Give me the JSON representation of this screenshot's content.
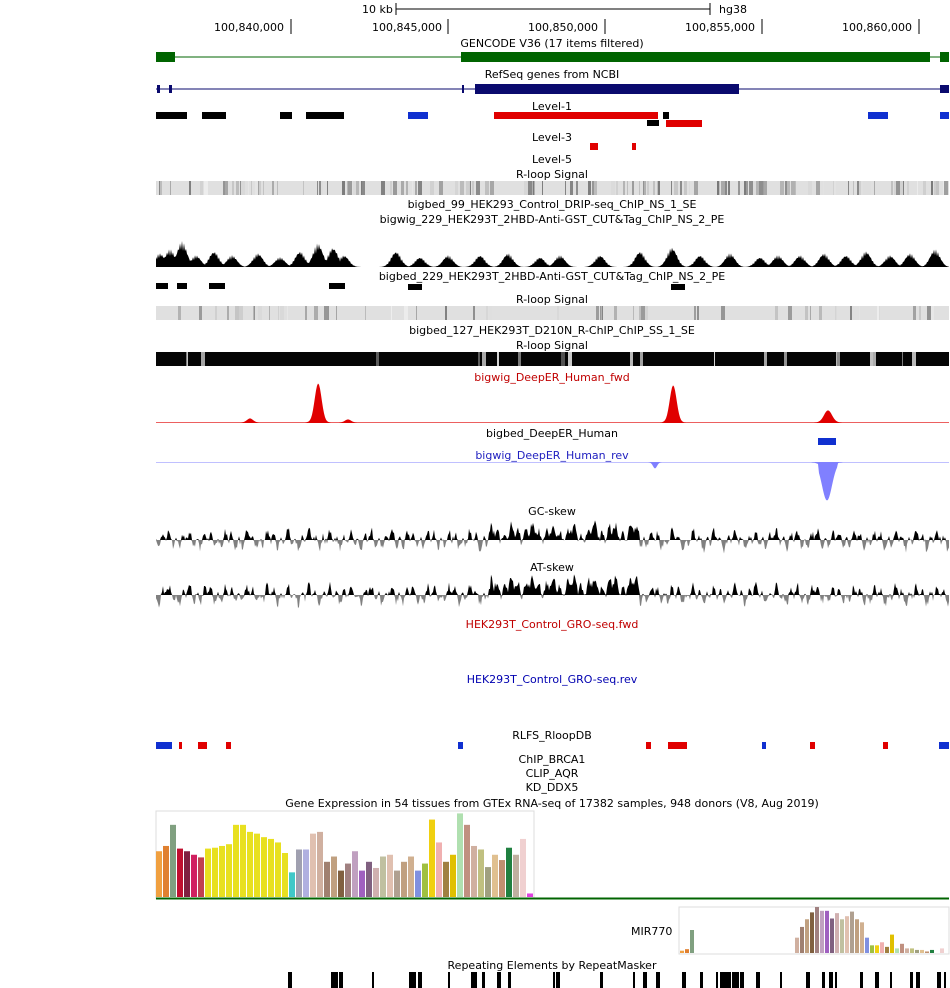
{
  "ruler": {
    "scale_label": "10 kb",
    "assembly": "hg38",
    "positions": [
      "100,840,000",
      "100,845,000",
      "100,850,000",
      "100,855,000",
      "100,860,000"
    ]
  },
  "tracks": {
    "gencode": "GENCODE V36 (17 items filtered)",
    "refseq": "RefSeq genes from NCBI",
    "level1": "Level-1",
    "level3": "Level-3",
    "level5": "Level-5",
    "rloop1": "R-loop Signal",
    "drip": "bigbed_99_HEK293_Control_DRIP-seq_ChIP_NS_1_SE",
    "cuttag_wig": "bigwig_229_HEK293T_2HBD-Anti-GST_CUT&Tag_ChIP_NS_2_PE",
    "cuttag_bed": "bigbed_229_HEK293T_2HBD-Anti-GST_CUT&Tag_ChIP_NS_2_PE",
    "rloop2": "R-loop Signal",
    "d210n": "bigbed_127_HEK293T_D210N_R-ChIP_ChIP_SS_1_SE",
    "rloop3": "R-loop Signal",
    "deeper_fwd": "bigwig_DeepER_Human_fwd",
    "deeper_bed": "bigbed_DeepER_Human",
    "deeper_rev": "bigwig_DeepER_Human_rev",
    "gcskew": "GC-skew",
    "atskew": "AT-skew",
    "gro_fwd": "HEK293T_Control_GRO-seq.fwd",
    "gro_rev": "HEK293T_Control_GRO-seq.rev",
    "rlfs": "RLFS_RloopDB",
    "brca1": "ChIP_BRCA1",
    "aqr": "CLIP_AQR",
    "ddx5": "KD_DDX5",
    "gtex": "Gene Expression in 54 tissues from GTEx RNA-seq of 17382 samples, 948 donors (V8, Aug 2019)",
    "mir": "MIR770",
    "repeats": "Repeating Elements by RepeatMasker"
  },
  "colors": {
    "gencode": "#006400",
    "refseq": "#0a0a6e",
    "level_red": "#e00000",
    "strand_blue": "#1030d0",
    "deeper_fwd": "#e00000",
    "deeper_rev": "#8080ff",
    "gro_fwd_label": "#c00000",
    "gro_rev_label": "#0000b0"
  },
  "gtex_chart": {
    "values": [
      52,
      58,
      82,
      55,
      52,
      48,
      45,
      55,
      56,
      58,
      60,
      82,
      82,
      74,
      72,
      68,
      66,
      62,
      50,
      28,
      54,
      54,
      72,
      74,
      40,
      46,
      30,
      38,
      52,
      30,
      40,
      33,
      46,
      48,
      30,
      40,
      46,
      30,
      38,
      88,
      62,
      40,
      48,
      95,
      82,
      58,
      54,
      34,
      48,
      42,
      56,
      48,
      66,
      4
    ],
    "colors": [
      "#f0a040",
      "#e08030",
      "#80a080",
      "#c01030",
      "#802040",
      "#d02060",
      "#c04050",
      "#e8e020",
      "#e8e020",
      "#e8e020",
      "#e8e020",
      "#e8e020",
      "#e8e020",
      "#e8e020",
      "#e8e020",
      "#e8e020",
      "#e8e020",
      "#e8e020",
      "#e8e020",
      "#40c8c8",
      "#a0a0b0",
      "#b0b0e0",
      "#e0c0b0",
      "#d0b0a0",
      "#a08070",
      "#c0a080",
      "#806040",
      "#a08080",
      "#c0a0c0",
      "#a060c0",
      "#806080",
      "#d0b0b0",
      "#c0c0a0",
      "#e0c0b0",
      "#b0a090",
      "#c0a080",
      "#d0b090",
      "#8090e0",
      "#a0c040",
      "#f0d010",
      "#f0b0b0",
      "#a08040",
      "#e0c000",
      "#b0e0b0",
      "#c09080",
      "#d0b0a0",
      "#c0c080",
      "#a0a080",
      "#e0c090",
      "#c09070",
      "#208040",
      "#c0b0a0",
      "#f0d0d0",
      "#e040e0"
    ]
  },
  "mir_chart": {
    "values": [
      3,
      5,
      30,
      0,
      0,
      0,
      0,
      0,
      0,
      0,
      0,
      0,
      0,
      0,
      0,
      0,
      0,
      0,
      0,
      0,
      0,
      0,
      0,
      20,
      34,
      44,
      53,
      60,
      55,
      55,
      45,
      52,
      44,
      48,
      54,
      44,
      40,
      20,
      10,
      10,
      14,
      8,
      24,
      6,
      12,
      6,
      6,
      4,
      4,
      2,
      4,
      0,
      6,
      0
    ]
  }
}
